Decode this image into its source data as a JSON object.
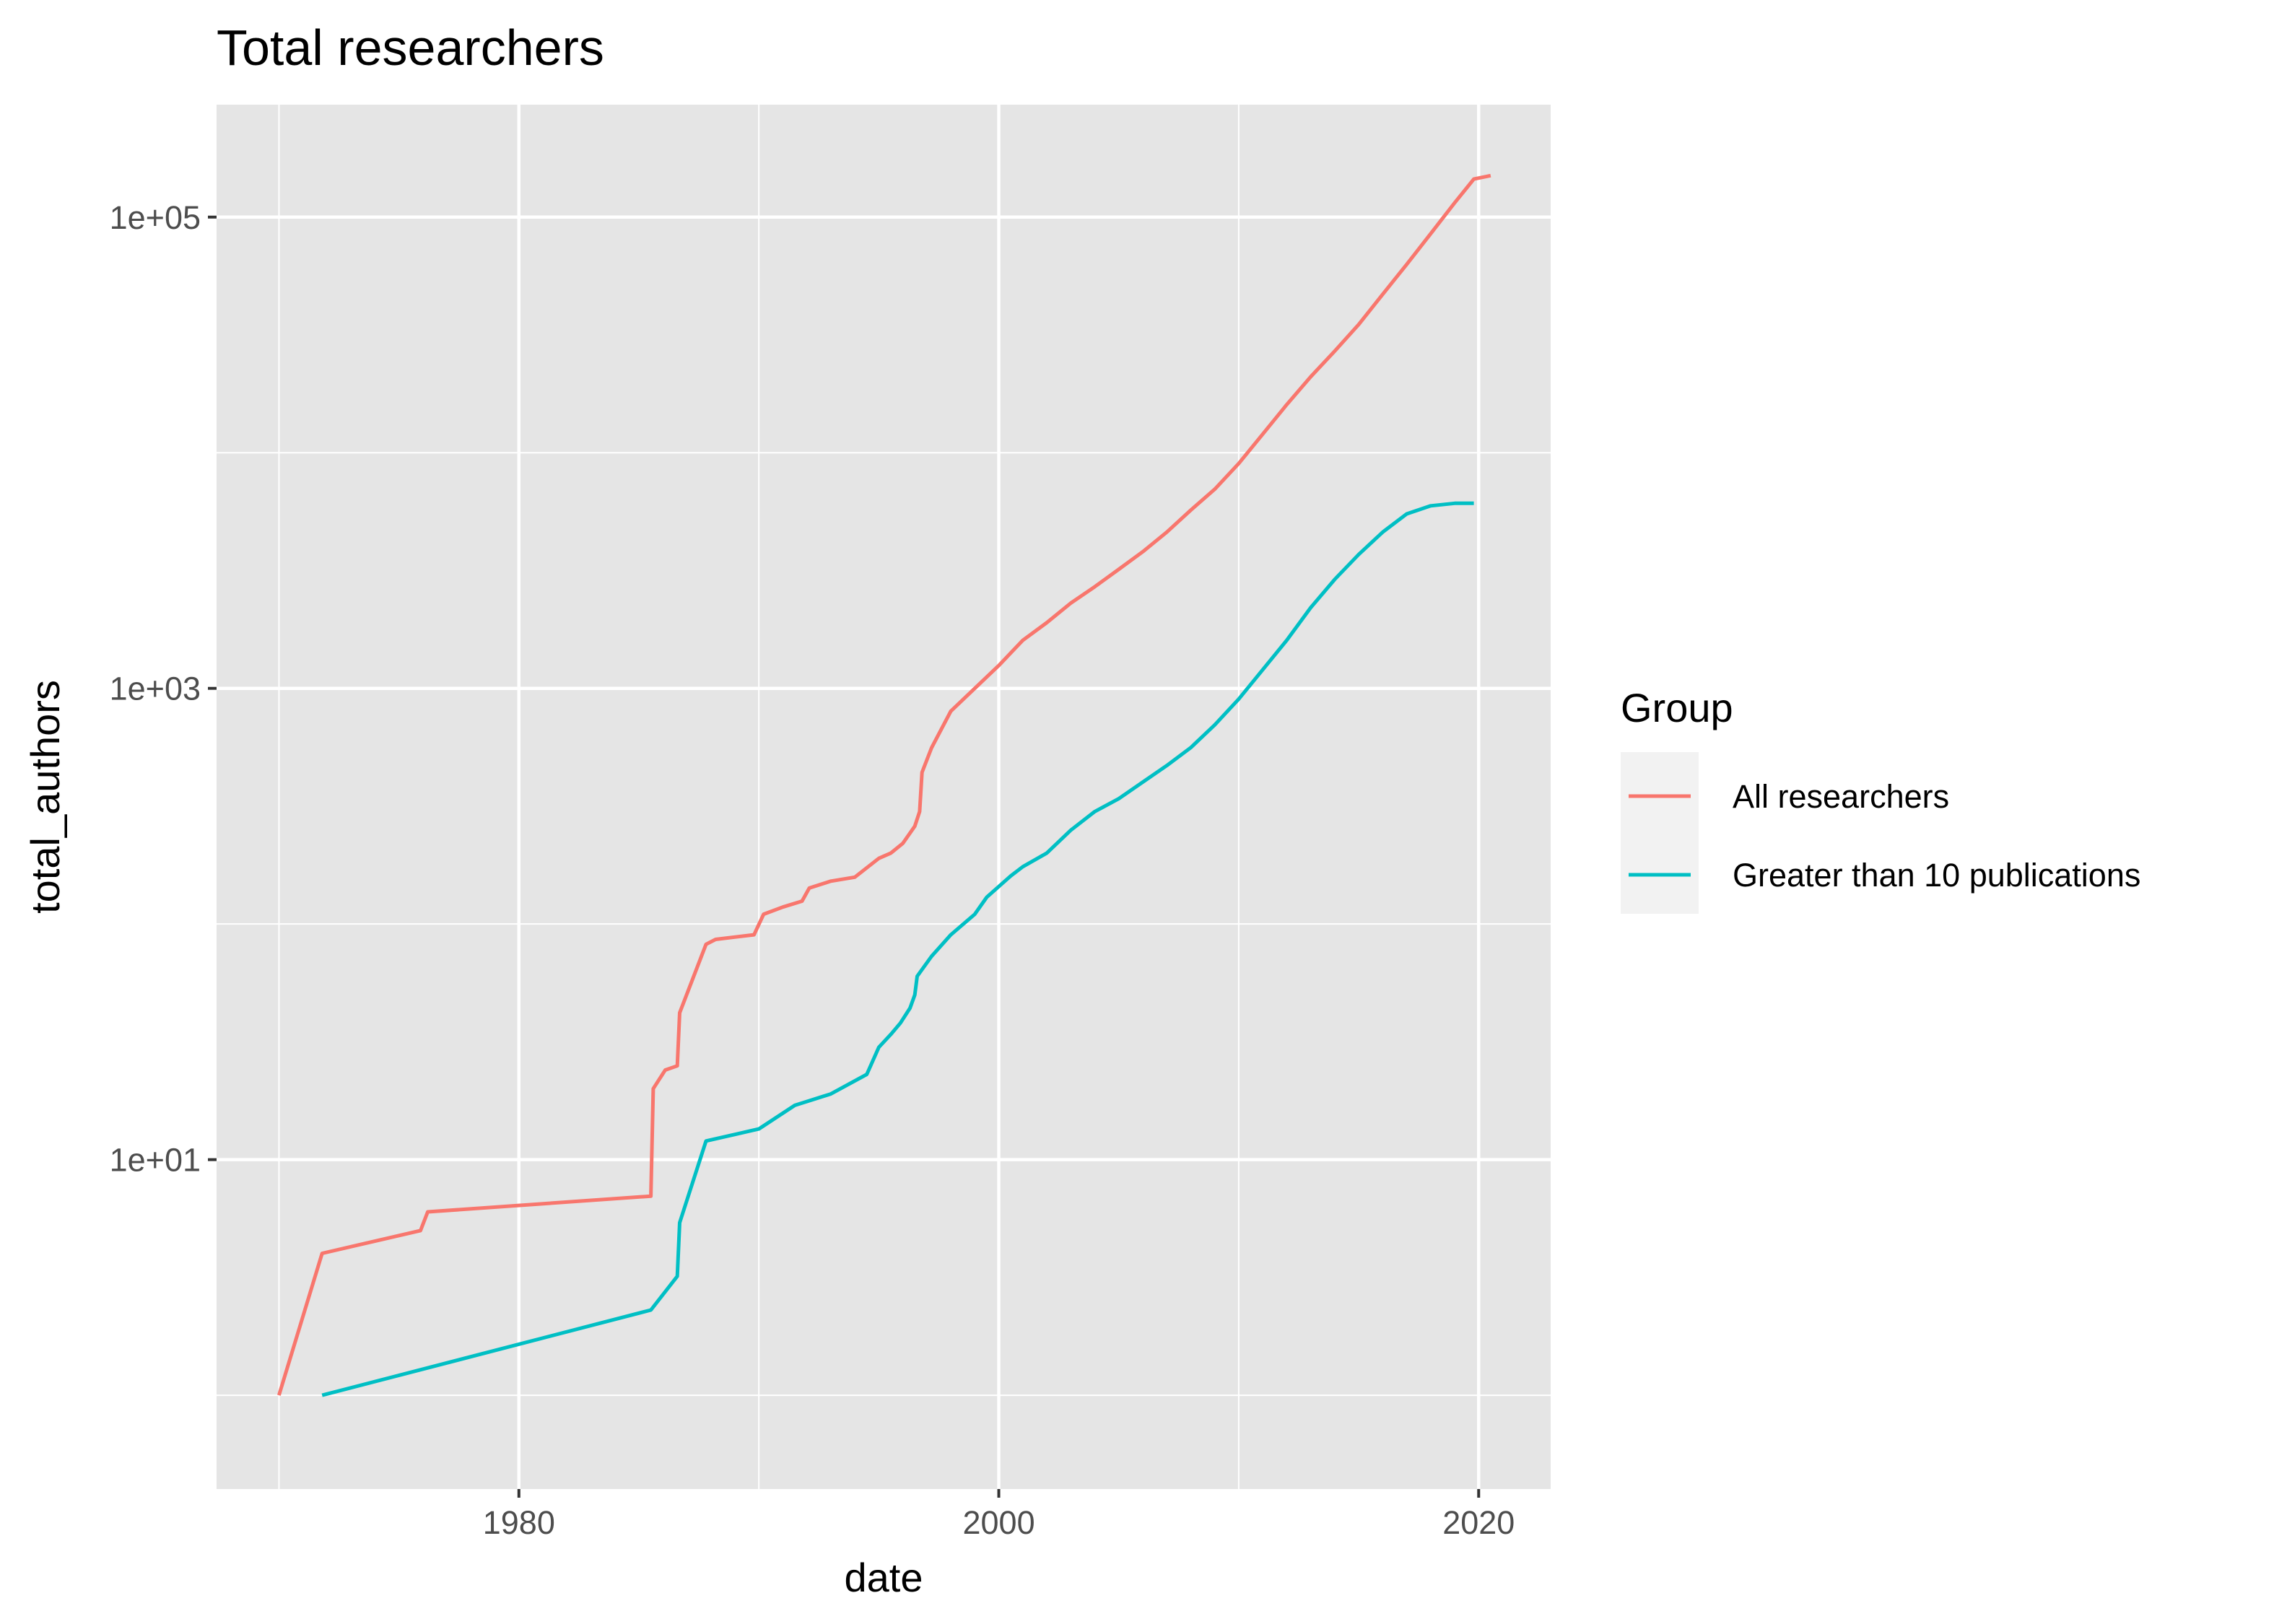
{
  "chart_data": {
    "type": "line",
    "title": "Total researchers",
    "xlabel": "date",
    "ylabel": "total_authors",
    "x_scale": "date",
    "y_scale": "log10",
    "xlim": [
      1967.4,
      2023.0
    ],
    "ylim": [
      0.4,
      300000
    ],
    "x_ticks": [
      1980,
      2000,
      2020
    ],
    "x_tick_labels": [
      "1980",
      "2000",
      "2020"
    ],
    "y_ticks": [
      10,
      1000,
      100000
    ],
    "y_tick_labels": [
      "1e+01",
      "1e+03",
      "1e+05"
    ],
    "y_minor_ticks": [
      1,
      100,
      10000
    ],
    "grid": true,
    "background": "#e5e5e5",
    "legend": {
      "title": "Group",
      "position": "right"
    },
    "series": [
      {
        "name": "All researchers",
        "color": "#f8766d",
        "points": [
          [
            1970.0,
            1
          ],
          [
            1971.8,
            4
          ],
          [
            1975.9,
            5
          ],
          [
            1976.2,
            6
          ],
          [
            1985.5,
            7
          ],
          [
            1985.6,
            20
          ],
          [
            1986.1,
            24
          ],
          [
            1986.6,
            25
          ],
          [
            1986.7,
            42
          ],
          [
            1987.8,
            82
          ],
          [
            1988.2,
            86
          ],
          [
            1989.8,
            90
          ],
          [
            1990.2,
            110
          ],
          [
            1991.0,
            118
          ],
          [
            1991.8,
            125
          ],
          [
            1992.1,
            142
          ],
          [
            1993.0,
            152
          ],
          [
            1994.0,
            158
          ],
          [
            1995.0,
            190
          ],
          [
            1995.5,
            200
          ],
          [
            1996.0,
            220
          ],
          [
            1996.5,
            260
          ],
          [
            1996.7,
            300
          ],
          [
            1996.8,
            440
          ],
          [
            1997.2,
            560
          ],
          [
            1998.0,
            800
          ],
          [
            1999.0,
            1000
          ],
          [
            2000.0,
            1250
          ],
          [
            2001.0,
            1600
          ],
          [
            2002.0,
            1900
          ],
          [
            2003.0,
            2300
          ],
          [
            2004.0,
            2700
          ],
          [
            2005.0,
            3200
          ],
          [
            2006.0,
            3800
          ],
          [
            2007.0,
            4600
          ],
          [
            2008.0,
            5700
          ],
          [
            2009.0,
            7000
          ],
          [
            2010.0,
            9000
          ],
          [
            2011.0,
            12000
          ],
          [
            2012.0,
            16000
          ],
          [
            2013.0,
            21000
          ],
          [
            2014.0,
            27000
          ],
          [
            2015.0,
            35000
          ],
          [
            2016.0,
            47000
          ],
          [
            2017.0,
            63000
          ],
          [
            2018.0,
            85000
          ],
          [
            2019.0,
            115000
          ],
          [
            2019.8,
            145000
          ],
          [
            2020.5,
            150000
          ]
        ]
      },
      {
        "name": "Greater than 10 publications",
        "color": "#00bfc4",
        "points": [
          [
            1971.8,
            1
          ],
          [
            1985.5,
            2.3
          ],
          [
            1986.6,
            3.2
          ],
          [
            1986.7,
            5.4
          ],
          [
            1987.8,
            12
          ],
          [
            1990.0,
            13.5
          ],
          [
            1991.5,
            17
          ],
          [
            1993.0,
            19
          ],
          [
            1994.5,
            23
          ],
          [
            1995.0,
            30
          ],
          [
            1995.5,
            34
          ],
          [
            1995.9,
            38
          ],
          [
            1996.3,
            44
          ],
          [
            1996.5,
            50
          ],
          [
            1996.6,
            60
          ],
          [
            1997.2,
            73
          ],
          [
            1998.0,
            90
          ],
          [
            1999.0,
            110
          ],
          [
            1999.5,
            130
          ],
          [
            2000.5,
            160
          ],
          [
            2001.0,
            175
          ],
          [
            2002.0,
            200
          ],
          [
            2003.0,
            250
          ],
          [
            2004.0,
            300
          ],
          [
            2005.0,
            340
          ],
          [
            2006.0,
            400
          ],
          [
            2007.0,
            470
          ],
          [
            2008.0,
            560
          ],
          [
            2009.0,
            700
          ],
          [
            2010.0,
            900
          ],
          [
            2011.0,
            1200
          ],
          [
            2012.0,
            1600
          ],
          [
            2013.0,
            2200
          ],
          [
            2014.0,
            2900
          ],
          [
            2015.0,
            3700
          ],
          [
            2016.0,
            4600
          ],
          [
            2017.0,
            5500
          ],
          [
            2018.0,
            5950
          ],
          [
            2019.0,
            6100
          ],
          [
            2019.8,
            6100
          ]
        ]
      }
    ]
  }
}
